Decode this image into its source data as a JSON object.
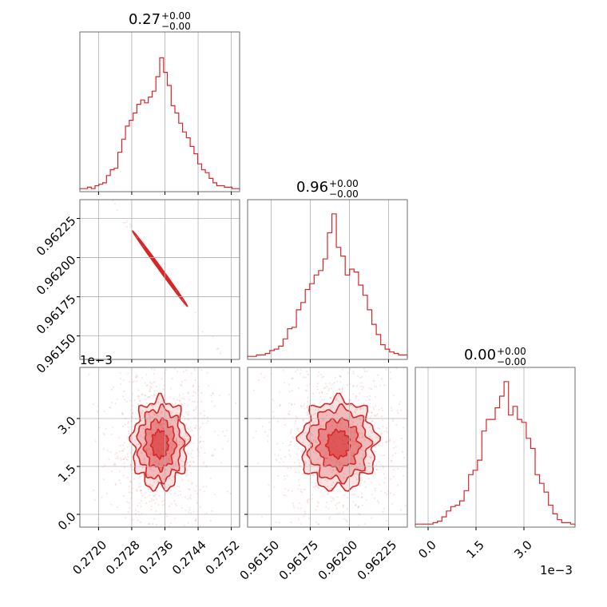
{
  "chart_data": {
    "type": "corner",
    "color": "#d62728",
    "parameters": [
      {
        "title_value": "0.27",
        "title_plus": "+0.00",
        "title_minus": "−0.00",
        "range": [
          0.27155,
          0.2754
        ],
        "ticks": [
          0.272,
          0.2728,
          0.2736,
          0.2744,
          0.2752
        ],
        "tick_labels": [
          "0.2720",
          "0.2728",
          "0.2736",
          "0.2744",
          "0.2752"
        ],
        "mean": 0.27348,
        "sd": 0.00033
      },
      {
        "title_value": "0.96",
        "title_plus": "+0.00",
        "title_minus": "−0.00",
        "range": [
          0.96135,
          0.96237
        ],
        "ticks": [
          0.9615,
          0.96175,
          0.962,
          0.96225
        ],
        "tick_labels": [
          "0.96150",
          "0.96175",
          "0.96200",
          "0.96225"
        ],
        "mean": 0.96193,
        "sd": 0.00012
      },
      {
        "title_value": "0.00",
        "title_plus": "+0.00",
        "title_minus": "−0.00",
        "range": [
          -0.0004,
          0.0046
        ],
        "ticks": [
          0.0,
          0.0015,
          0.003
        ],
        "tick_labels": [
          "0.0",
          "1.5",
          "3.0"
        ],
        "offset_label": "1e−3",
        "mean": 0.0022,
        "sd": 0.0007
      }
    ],
    "hist_heights": [
      [
        0.01,
        0.01,
        0.02,
        0.01,
        0.03,
        0.04,
        0.05,
        0.1,
        0.14,
        0.15,
        0.26,
        0.35,
        0.44,
        0.48,
        0.53,
        0.59,
        0.62,
        0.6,
        0.64,
        0.68,
        0.78,
        0.91,
        0.81,
        0.72,
        0.58,
        0.53,
        0.46,
        0.4,
        0.36,
        0.3,
        0.25,
        0.18,
        0.14,
        0.12,
        0.08,
        0.05,
        0.03,
        0.03,
        0.02,
        0.02,
        0.01,
        0.01
      ],
      [
        0.01,
        0.01,
        0.02,
        0.02,
        0.03,
        0.05,
        0.06,
        0.08,
        0.13,
        0.2,
        0.21,
        0.33,
        0.38,
        0.47,
        0.51,
        0.57,
        0.6,
        0.68,
        0.86,
        0.99,
        0.76,
        0.7,
        0.57,
        0.61,
        0.59,
        0.5,
        0.43,
        0.33,
        0.23,
        0.16,
        0.09,
        0.06,
        0.04,
        0.03,
        0.02,
        0.02
      ],
      [
        0.01,
        0.01,
        0.01,
        0.01,
        0.02,
        0.03,
        0.06,
        0.1,
        0.13,
        0.14,
        0.17,
        0.24,
        0.35,
        0.38,
        0.45,
        0.65,
        0.73,
        0.73,
        0.81,
        0.89,
        0.99,
        0.76,
        0.82,
        0.73,
        0.71,
        0.6,
        0.53,
        0.35,
        0.29,
        0.23,
        0.14,
        0.08,
        0.04,
        0.02,
        0.02,
        0.01
      ]
    ]
  }
}
